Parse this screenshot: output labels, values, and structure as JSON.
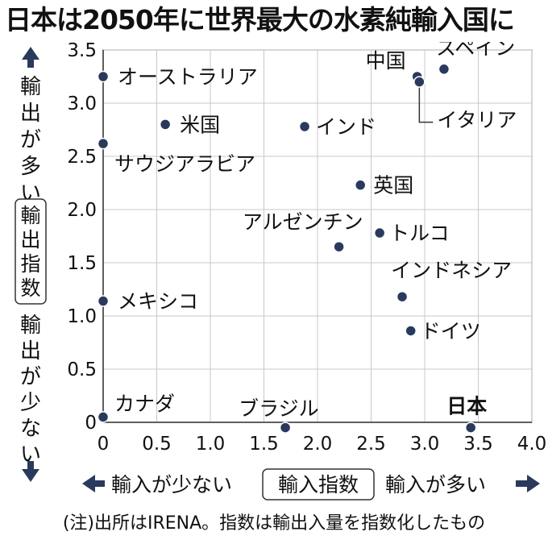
{
  "title": "日本は2050年に世界最大の水素純輸入国に",
  "note": "(注)出所はIRENA。指数は輸出入量を指数化したもの",
  "chart_data": {
    "type": "scatter",
    "title": "日本は2050年に世界最大の水素純輸入国に",
    "xlabel": "輸入指数",
    "ylabel": "輸出指数",
    "x_low_label": "輸入が少ない",
    "x_high_label": "輸入が多い",
    "y_high_label": "輸出が多い",
    "y_low_label": "輸出が少ない",
    "xlim": [
      0,
      4.0
    ],
    "ylim": [
      0,
      3.5
    ],
    "x_ticks": [
      "0",
      "0.5",
      "1.0",
      "1.5",
      "2.0",
      "2.5",
      "3.0",
      "3.5",
      "4.0"
    ],
    "y_ticks": [
      "0",
      "0.5",
      "1.0",
      "1.5",
      "2.0",
      "2.5",
      "3.0",
      "3.5"
    ],
    "grid": true,
    "points": [
      {
        "label": "オーストラリア",
        "x": 0.0,
        "y": 3.25
      },
      {
        "label": "米国",
        "x": 0.58,
        "y": 2.8
      },
      {
        "label": "サウジアラビア",
        "x": 0.0,
        "y": 2.62
      },
      {
        "label": "インド",
        "x": 1.88,
        "y": 2.78
      },
      {
        "label": "中国",
        "x": 2.93,
        "y": 3.25
      },
      {
        "label": "スペイン",
        "x": 3.18,
        "y": 3.32
      },
      {
        "label": "イタリア",
        "x": 2.95,
        "y": 3.2
      },
      {
        "label": "英国",
        "x": 2.4,
        "y": 2.23
      },
      {
        "label": "トルコ",
        "x": 2.58,
        "y": 1.78
      },
      {
        "label": "アルゼンチン",
        "x": 2.2,
        "y": 1.65
      },
      {
        "label": "インドネシア",
        "x": 2.79,
        "y": 1.18
      },
      {
        "label": "ドイツ",
        "x": 2.87,
        "y": 0.86
      },
      {
        "label": "メキシコ",
        "x": 0.0,
        "y": 1.14
      },
      {
        "label": "カナダ",
        "x": 0.0,
        "y": 0.05
      },
      {
        "label": "ブラジル",
        "x": 1.7,
        "y": -0.05
      },
      {
        "label": "日本",
        "x": 3.43,
        "y": -0.05
      }
    ]
  }
}
